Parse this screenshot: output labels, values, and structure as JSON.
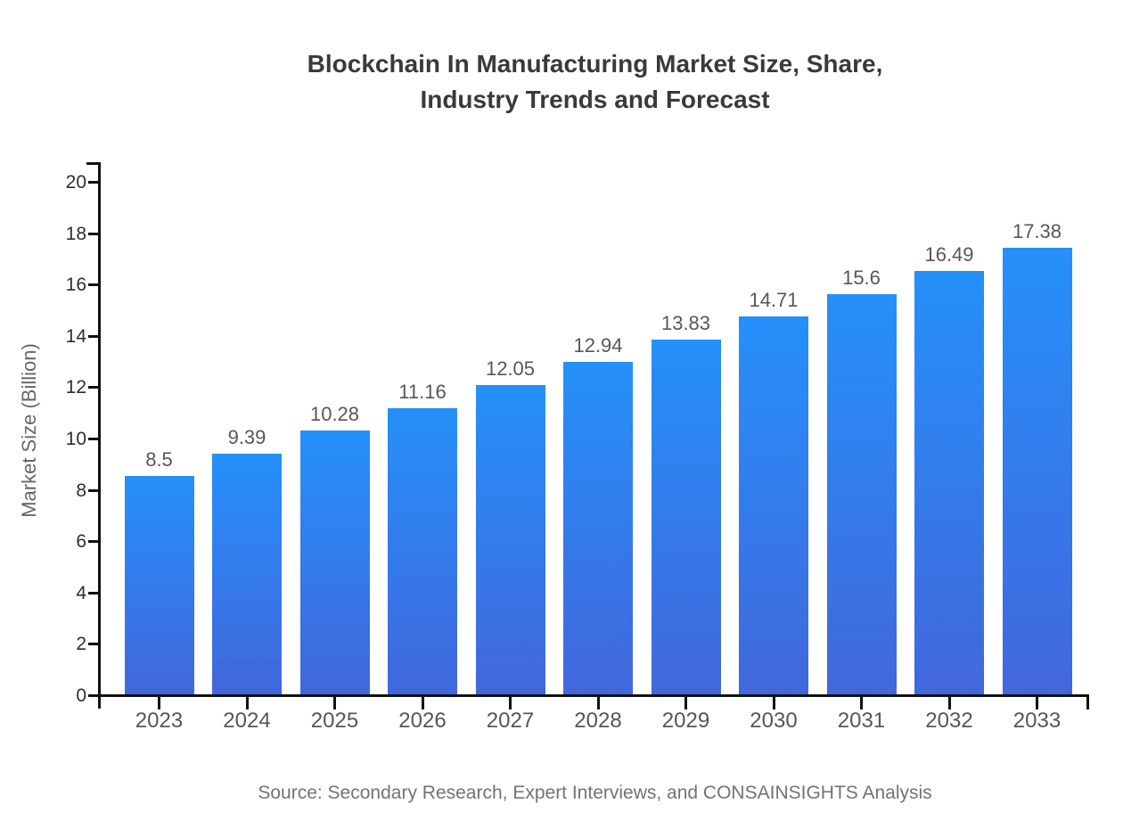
{
  "title": {
    "line1": "Blockchain In Manufacturing Market Size, Share,",
    "line2": "Industry Trends and Forecast"
  },
  "source": "Source: Secondary Research, Expert Interviews, and CONSAINSIGHTS Analysis",
  "colors": {
    "bar_gradient_top": "#2590FA",
    "bar_gradient_bottom": "#4267DC",
    "axis": "#111111",
    "title_text": "#3a3a3a",
    "tick_text": "#565656",
    "value_label_text": "#575757",
    "source_text": "#737373"
  },
  "chart_data": {
    "type": "bar",
    "title": "Blockchain In Manufacturing Market Size, Share, Industry Trends and Forecast",
    "xlabel": "",
    "ylabel": "Market Size (Billion)",
    "categories": [
      "2023",
      "2024",
      "2025",
      "2026",
      "2027",
      "2028",
      "2029",
      "2030",
      "2031",
      "2032",
      "2033"
    ],
    "values": [
      8.5,
      9.39,
      10.28,
      11.16,
      12.05,
      12.94,
      13.83,
      14.71,
      15.6,
      16.49,
      17.38
    ],
    "value_labels": [
      "8.5",
      "9.39",
      "10.28",
      "11.16",
      "12.05",
      "12.94",
      "13.83",
      "14.71",
      "15.6",
      "16.49",
      "17.38"
    ],
    "ylim": [
      0,
      20
    ],
    "yticks": [
      0,
      2,
      4,
      6,
      8,
      10,
      12,
      14,
      16,
      18,
      20
    ],
    "grid": false,
    "legend_position": "none",
    "bar_color_gradient": [
      "#2590FA",
      "#4267DC"
    ],
    "annotation": "Source: Secondary Research, Expert Interviews, and CONSAINSIGHTS Analysis"
  }
}
